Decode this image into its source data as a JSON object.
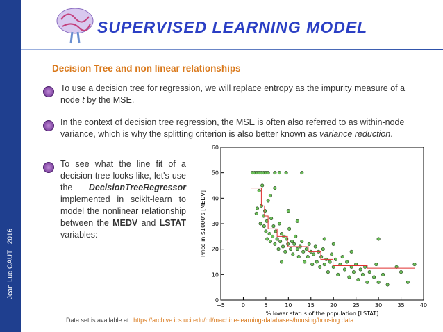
{
  "header": {
    "title": "SUPERVISED LEARNING MODEL"
  },
  "slide": {
    "heading": "Decision Tree  and non linear relationships"
  },
  "bullets": [
    {
      "parts": [
        {
          "text": "To use a decision tree for regression, we will replace entropy as the impurity measure of a node "
        },
        {
          "text": "t",
          "italic": true
        },
        {
          "text": " by the MSE."
        }
      ]
    },
    {
      "parts": [
        {
          "text": "In the context of decision tree regression, the MSE is often also referred to as within-node variance, which is why the splitting criterion is also better known as "
        },
        {
          "text": "variance reduction",
          "italic": true
        },
        {
          "text": "."
        }
      ]
    },
    {
      "parts": [
        {
          "text": "To see what the line fit of a decision tree looks like, let's use the "
        },
        {
          "text": "DecisionTreeRegressor",
          "italic": true,
          "bold": true
        },
        {
          "text": " implemented in scikit-learn to model the nonlinear relationship between the "
        },
        {
          "text": "MEDV",
          "bold": true
        },
        {
          "text": " and "
        },
        {
          "text": "LSTAT",
          "bold": true
        },
        {
          "text": " variables:"
        }
      ]
    }
  ],
  "author": "Jean-Luc CAUT - 2016",
  "footer": {
    "note": "Data set is available at:",
    "url": "https://archive.ics.uci.edu/ml/machine-learning-databases/housing/housing.data"
  },
  "chart_data": {
    "type": "scatter",
    "x_label": "% lower status of the population [LSTAT]",
    "y_label": "Price in $1000's [MEDV]",
    "xlim": [
      -5,
      40
    ],
    "ylim": [
      0,
      60
    ],
    "xticks": [
      {
        "value": -5,
        "label": "−5"
      },
      0,
      5,
      10,
      15,
      20,
      25,
      30,
      35,
      40
    ],
    "yticks": [
      0,
      10,
      20,
      30,
      40,
      50,
      60
    ],
    "series": [
      {
        "type": "scatter",
        "color": "#6cbf5a",
        "x": [
          2,
          2.5,
          3,
          3.5,
          4,
          4.5,
          5,
          5.5,
          7,
          8,
          9.5,
          13,
          2.9,
          3.1,
          3.5,
          3.8,
          4.0,
          4.2,
          4.5,
          4.6,
          4.8,
          5.0,
          5.2,
          5.3,
          5.5,
          5.8,
          6.0,
          6.2,
          6.5,
          6.7,
          7.0,
          7.2,
          7.5,
          7.8,
          8.0,
          8.2,
          8.5,
          8.8,
          9.0,
          9.3,
          9.6,
          9.9,
          10.2,
          10.5,
          10.8,
          11.0,
          11.3,
          11.6,
          12.0,
          12.3,
          12.6,
          13.0,
          13.3,
          13.6,
          14.0,
          14.3,
          14.6,
          15.0,
          15.3,
          15.6,
          16.0,
          16.3,
          16.7,
          17.0,
          17.3,
          17.7,
          18.0,
          18.4,
          18.8,
          19.2,
          19.6,
          20.0,
          20.5,
          21.0,
          21.5,
          22.0,
          22.5,
          23.0,
          23.5,
          24.0,
          24.5,
          25.0,
          25.5,
          26.0,
          26.5,
          27.0,
          27.5,
          28.0,
          29.0,
          29.5,
          30.0,
          31.0,
          32.0,
          34.0,
          35.0,
          36.5,
          38.0,
          8.5,
          10,
          12,
          6,
          7,
          20,
          24,
          30,
          18
        ],
        "values": [
          50,
          50,
          50,
          50,
          50,
          50,
          50,
          50,
          50,
          50,
          50,
          50,
          34,
          36,
          43,
          30,
          37,
          45,
          33,
          29,
          35,
          27,
          31,
          24,
          39,
          26,
          23,
          32,
          25,
          29,
          22,
          27,
          24,
          20,
          30,
          23,
          26,
          21,
          25,
          19,
          24,
          22,
          28,
          20,
          23,
          18,
          22,
          25,
          20,
          17,
          21,
          23,
          19,
          15,
          20,
          17,
          22,
          19,
          14,
          18,
          21,
          15,
          19,
          13,
          17,
          20,
          14,
          16,
          11,
          15,
          18,
          13,
          16,
          10,
          14,
          17,
          12,
          15,
          9,
          13,
          11,
          14,
          8,
          12,
          10,
          13,
          7,
          11,
          9,
          14,
          7,
          10,
          6,
          13,
          11,
          7,
          14,
          15,
          35,
          31,
          41,
          44,
          22,
          19,
          24,
          24
        ]
      },
      {
        "type": "step",
        "color": "#e03030",
        "x": [
          1.7,
          4.0,
          4.7,
          5.5,
          7.5,
          9.8,
          14.4,
          17.2,
          19.9,
          27.5,
          38
        ],
        "values": [
          44,
          37,
          33,
          28,
          25,
          21,
          19,
          16,
          13.5,
          12.5,
          12.5
        ]
      }
    ]
  }
}
